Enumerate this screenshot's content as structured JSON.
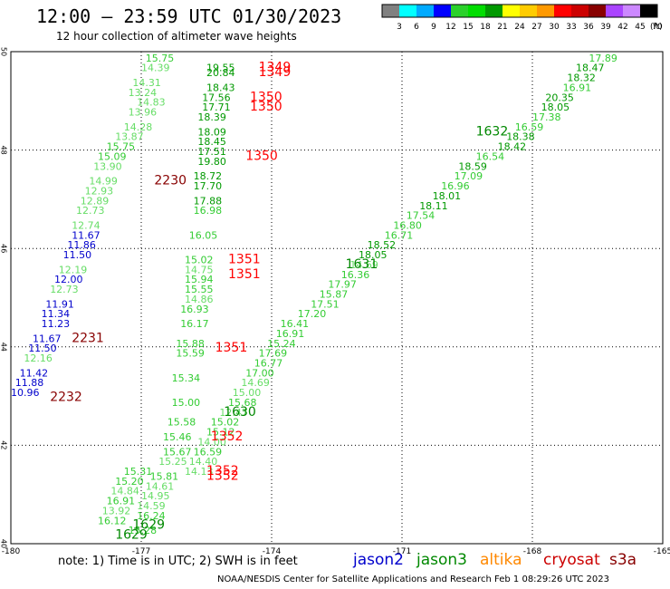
{
  "header": {
    "title": "12:00 – 23:59 UTC 01/30/2023",
    "subtitle": "12 hour collection of altimeter wave heights",
    "unit_label": "(ft)"
  },
  "colorbar": {
    "ticks": [
      "3",
      "6",
      "9",
      "12",
      "15",
      "18",
      "21",
      "24",
      "27",
      "30",
      "33",
      "36",
      "39",
      "42",
      "45",
      "70"
    ],
    "colors": [
      "#808080",
      "#00ffff",
      "#00aaff",
      "#0000ff",
      "#2bd12b",
      "#00dd00",
      "#009900",
      "#ffff00",
      "#ffcc00",
      "#ff9900",
      "#ff0000",
      "#cc0000",
      "#880000",
      "#aa44ff",
      "#cc88ff",
      "#000000"
    ]
  },
  "footer": {
    "note": "note: 1) Time is in UTC; 2) SWH is in feet",
    "satellites": [
      {
        "name": "jason2",
        "color": "#0000cc"
      },
      {
        "name": "jason3",
        "color": "#008800"
      },
      {
        "name": "altika",
        "color": "#ff8800"
      },
      {
        "name": "cryosat",
        "color": "#cc0000"
      },
      {
        "name": "s3a",
        "color": "#880000"
      }
    ],
    "credit": "NOAA/NESDIS Center for Satellite Applications and Research    Feb  1 08:29:26 UTC 2023"
  },
  "chart_data": {
    "type": "scatter",
    "title": "12:00 – 23:59 UTC 01/30/2023",
    "subtitle": "12 hour collection of altimeter wave heights",
    "xlim": [
      -180,
      -165
    ],
    "ylim": [
      40,
      50
    ],
    "x_tick_labels": [
      "-180",
      "-177",
      "-174",
      "-171",
      "-168",
      "-165"
    ],
    "y_tick_labels": [
      "40",
      "42",
      "44",
      "46",
      "48",
      "50"
    ],
    "grid": true,
    "units": "ft",
    "swh_labels": [
      {
        "lon": -176.9,
        "lat": 49.8,
        "swh": "15.75",
        "color": "#33cc33"
      },
      {
        "lon": -177.0,
        "lat": 49.6,
        "swh": "14.39",
        "color": "#66dd66"
      },
      {
        "lon": -177.2,
        "lat": 49.3,
        "swh": "14.31",
        "color": "#66dd66"
      },
      {
        "lon": -177.3,
        "lat": 49.1,
        "swh": "13.24",
        "color": "#66dd66"
      },
      {
        "lon": -177.1,
        "lat": 48.9,
        "swh": "14.83",
        "color": "#66dd66"
      },
      {
        "lon": -177.3,
        "lat": 48.7,
        "swh": "13.96",
        "color": "#66dd66"
      },
      {
        "lon": -177.4,
        "lat": 48.4,
        "swh": "14.28",
        "color": "#66dd66"
      },
      {
        "lon": -177.6,
        "lat": 48.2,
        "swh": "13.87",
        "color": "#66dd66"
      },
      {
        "lon": -177.8,
        "lat": 48.0,
        "swh": "15.75",
        "color": "#33cc33"
      },
      {
        "lon": -178.0,
        "lat": 47.8,
        "swh": "15.09",
        "color": "#33cc33"
      },
      {
        "lon": -178.1,
        "lat": 47.6,
        "swh": "13.90",
        "color": "#66dd66"
      },
      {
        "lon": -178.2,
        "lat": 47.3,
        "swh": "14.99",
        "color": "#66dd66"
      },
      {
        "lon": -178.3,
        "lat": 47.1,
        "swh": "12.93",
        "color": "#66dd66"
      },
      {
        "lon": -178.4,
        "lat": 46.9,
        "swh": "12.89",
        "color": "#66dd66"
      },
      {
        "lon": -178.5,
        "lat": 46.7,
        "swh": "12.73",
        "color": "#66dd66"
      },
      {
        "lon": -178.6,
        "lat": 46.4,
        "swh": "12.74",
        "color": "#66dd66"
      },
      {
        "lon": -178.6,
        "lat": 46.2,
        "swh": "11.67",
        "color": "#0000cc"
      },
      {
        "lon": -178.7,
        "lat": 46.0,
        "swh": "11.86",
        "color": "#0000cc"
      },
      {
        "lon": -178.8,
        "lat": 45.8,
        "swh": "11.50",
        "color": "#0000cc"
      },
      {
        "lon": -178.9,
        "lat": 45.5,
        "swh": "12.19",
        "color": "#66dd66"
      },
      {
        "lon": -179.0,
        "lat": 45.3,
        "swh": "12.00",
        "color": "#0000cc"
      },
      {
        "lon": -179.1,
        "lat": 45.1,
        "swh": "12.73",
        "color": "#66dd66"
      },
      {
        "lon": -179.2,
        "lat": 44.8,
        "swh": "11.91",
        "color": "#0000cc"
      },
      {
        "lon": -179.3,
        "lat": 44.6,
        "swh": "11.34",
        "color": "#0000cc"
      },
      {
        "lon": -179.3,
        "lat": 44.4,
        "swh": "11.23",
        "color": "#0000cc"
      },
      {
        "lon": -179.5,
        "lat": 44.1,
        "swh": "11.67",
        "color": "#0000cc"
      },
      {
        "lon": -179.6,
        "lat": 43.9,
        "swh": "11.50",
        "color": "#0000cc"
      },
      {
        "lon": -179.7,
        "lat": 43.7,
        "swh": "12.16",
        "color": "#66dd66"
      },
      {
        "lon": -179.8,
        "lat": 43.4,
        "swh": "11.42",
        "color": "#0000cc"
      },
      {
        "lon": -179.9,
        "lat": 43.2,
        "swh": "11.88",
        "color": "#0000cc"
      },
      {
        "lon": -180.0,
        "lat": 43.0,
        "swh": "10.96",
        "color": "#0000cc"
      },
      {
        "lon": -175.5,
        "lat": 49.6,
        "swh": "19.55",
        "color": "#009900"
      },
      {
        "lon": -175.5,
        "lat": 49.5,
        "swh": "20.84",
        "color": "#009900"
      },
      {
        "lon": -175.5,
        "lat": 49.2,
        "swh": "18.43",
        "color": "#009900"
      },
      {
        "lon": -175.6,
        "lat": 49.0,
        "swh": "17.56",
        "color": "#009900"
      },
      {
        "lon": -175.6,
        "lat": 48.8,
        "swh": "17.71",
        "color": "#009900"
      },
      {
        "lon": -175.7,
        "lat": 48.6,
        "swh": "18.39",
        "color": "#009900"
      },
      {
        "lon": -175.7,
        "lat": 48.3,
        "swh": "18.09",
        "color": "#009900"
      },
      {
        "lon": -175.7,
        "lat": 48.1,
        "swh": "18.45",
        "color": "#009900"
      },
      {
        "lon": -175.7,
        "lat": 47.9,
        "swh": "17.51",
        "color": "#009900"
      },
      {
        "lon": -175.7,
        "lat": 47.7,
        "swh": "19.80",
        "color": "#009900"
      },
      {
        "lon": -175.8,
        "lat": 47.4,
        "swh": "18.72",
        "color": "#009900"
      },
      {
        "lon": -175.8,
        "lat": 47.2,
        "swh": "17.70",
        "color": "#009900"
      },
      {
        "lon": -175.8,
        "lat": 46.9,
        "swh": "17.88",
        "color": "#009900"
      },
      {
        "lon": -175.8,
        "lat": 46.7,
        "swh": "16.98",
        "color": "#33cc33"
      },
      {
        "lon": -175.9,
        "lat": 46.2,
        "swh": "16.05",
        "color": "#33cc33"
      },
      {
        "lon": -176.0,
        "lat": 45.7,
        "swh": "15.02",
        "color": "#33cc33"
      },
      {
        "lon": -176.0,
        "lat": 45.5,
        "swh": "14.75",
        "color": "#66dd66"
      },
      {
        "lon": -176.0,
        "lat": 45.3,
        "swh": "15.94",
        "color": "#33cc33"
      },
      {
        "lon": -176.0,
        "lat": 45.1,
        "swh": "15.55",
        "color": "#33cc33"
      },
      {
        "lon": -176.0,
        "lat": 44.9,
        "swh": "14.86",
        "color": "#66dd66"
      },
      {
        "lon": -176.1,
        "lat": 44.7,
        "swh": "16.93",
        "color": "#33cc33"
      },
      {
        "lon": -176.1,
        "lat": 44.4,
        "swh": "16.17",
        "color": "#33cc33"
      },
      {
        "lon": -176.2,
        "lat": 44.0,
        "swh": "15.88",
        "color": "#33cc33"
      },
      {
        "lon": -176.2,
        "lat": 43.8,
        "swh": "15.59",
        "color": "#33cc33"
      },
      {
        "lon": -176.3,
        "lat": 43.3,
        "swh": "15.34",
        "color": "#33cc33"
      },
      {
        "lon": -176.3,
        "lat": 42.8,
        "swh": "15.00",
        "color": "#33cc33"
      },
      {
        "lon": -176.4,
        "lat": 42.4,
        "swh": "15.58",
        "color": "#33cc33"
      },
      {
        "lon": -176.5,
        "lat": 42.1,
        "swh": "15.46",
        "color": "#33cc33"
      },
      {
        "lon": -176.5,
        "lat": 41.8,
        "swh": "15.67",
        "color": "#33cc33"
      },
      {
        "lon": -176.6,
        "lat": 41.6,
        "swh": "15.25",
        "color": "#66dd66"
      },
      {
        "lon": -176.8,
        "lat": 41.3,
        "swh": "15.81",
        "color": "#33cc33"
      },
      {
        "lon": -176.9,
        "lat": 41.1,
        "swh": "14.61",
        "color": "#66dd66"
      },
      {
        "lon": -177.0,
        "lat": 40.9,
        "swh": "14.95",
        "color": "#66dd66"
      },
      {
        "lon": -177.1,
        "lat": 40.7,
        "swh": "14.59",
        "color": "#66dd66"
      },
      {
        "lon": -177.1,
        "lat": 40.5,
        "swh": "16.24",
        "color": "#33cc33"
      },
      {
        "lon": -177.3,
        "lat": 40.2,
        "swh": "15.28",
        "color": "#33cc33"
      },
      {
        "lon": -177.4,
        "lat": 41.4,
        "swh": "15.31",
        "color": "#33cc33"
      },
      {
        "lon": -177.6,
        "lat": 41.2,
        "swh": "15.20",
        "color": "#33cc33"
      },
      {
        "lon": -177.7,
        "lat": 41.0,
        "swh": "14.84",
        "color": "#66dd66"
      },
      {
        "lon": -177.8,
        "lat": 40.8,
        "swh": "16.91",
        "color": "#33cc33"
      },
      {
        "lon": -177.9,
        "lat": 40.6,
        "swh": "13.92",
        "color": "#66dd66"
      },
      {
        "lon": -178.0,
        "lat": 40.4,
        "swh": "16.12",
        "color": "#33cc33"
      },
      {
        "lon": -166.7,
        "lat": 49.8,
        "swh": "17.89",
        "color": "#33cc33"
      },
      {
        "lon": -167.0,
        "lat": 49.6,
        "swh": "18.47",
        "color": "#009900"
      },
      {
        "lon": -167.2,
        "lat": 49.4,
        "swh": "18.32",
        "color": "#009900"
      },
      {
        "lon": -167.3,
        "lat": 49.2,
        "swh": "16.91",
        "color": "#33cc33"
      },
      {
        "lon": -167.7,
        "lat": 49.0,
        "swh": "20.35",
        "color": "#009900"
      },
      {
        "lon": -167.8,
        "lat": 48.8,
        "swh": "18.05",
        "color": "#009900"
      },
      {
        "lon": -168.0,
        "lat": 48.6,
        "swh": "17.38",
        "color": "#33cc33"
      },
      {
        "lon": -168.4,
        "lat": 48.4,
        "swh": "16.59",
        "color": "#33cc33"
      },
      {
        "lon": -168.6,
        "lat": 48.2,
        "swh": "18.38",
        "color": "#009900"
      },
      {
        "lon": -168.8,
        "lat": 48.0,
        "swh": "18.42",
        "color": "#009900"
      },
      {
        "lon": -169.3,
        "lat": 47.8,
        "swh": "16.54",
        "color": "#33cc33"
      },
      {
        "lon": -169.7,
        "lat": 47.6,
        "swh": "18.59",
        "color": "#009900"
      },
      {
        "lon": -169.8,
        "lat": 47.4,
        "swh": "17.09",
        "color": "#33cc33"
      },
      {
        "lon": -170.1,
        "lat": 47.2,
        "swh": "16.96",
        "color": "#33cc33"
      },
      {
        "lon": -170.3,
        "lat": 47.0,
        "swh": "18.01",
        "color": "#009900"
      },
      {
        "lon": -170.6,
        "lat": 46.8,
        "swh": "18.11",
        "color": "#009900"
      },
      {
        "lon": -170.9,
        "lat": 46.6,
        "swh": "17.54",
        "color": "#33cc33"
      },
      {
        "lon": -171.2,
        "lat": 46.4,
        "swh": "16.80",
        "color": "#33cc33"
      },
      {
        "lon": -171.4,
        "lat": 46.2,
        "swh": "16.71",
        "color": "#33cc33"
      },
      {
        "lon": -171.8,
        "lat": 46.0,
        "swh": "18.52",
        "color": "#009900"
      },
      {
        "lon": -172.0,
        "lat": 45.8,
        "swh": "18.05",
        "color": "#009900"
      },
      {
        "lon": -172.2,
        "lat": 45.6,
        "swh": "14.69",
        "color": "#66dd66"
      },
      {
        "lon": -172.4,
        "lat": 45.4,
        "swh": "16.36",
        "color": "#33cc33"
      },
      {
        "lon": -172.7,
        "lat": 45.2,
        "swh": "17.97",
        "color": "#33cc33"
      },
      {
        "lon": -172.9,
        "lat": 45.0,
        "swh": "15.87",
        "color": "#33cc33"
      },
      {
        "lon": -173.1,
        "lat": 44.8,
        "swh": "17.51",
        "color": "#33cc33"
      },
      {
        "lon": -173.4,
        "lat": 44.6,
        "swh": "17.20",
        "color": "#33cc33"
      },
      {
        "lon": -173.8,
        "lat": 44.4,
        "swh": "16.41",
        "color": "#33cc33"
      },
      {
        "lon": -173.9,
        "lat": 44.2,
        "swh": "16.91",
        "color": "#33cc33"
      },
      {
        "lon": -174.1,
        "lat": 44.0,
        "swh": "15.24",
        "color": "#33cc33"
      },
      {
        "lon": -174.3,
        "lat": 43.8,
        "swh": "17.69",
        "color": "#33cc33"
      },
      {
        "lon": -174.4,
        "lat": 43.6,
        "swh": "16.77",
        "color": "#33cc33"
      },
      {
        "lon": -174.6,
        "lat": 43.4,
        "swh": "17.00",
        "color": "#33cc33"
      },
      {
        "lon": -174.7,
        "lat": 43.2,
        "swh": "14.69",
        "color": "#66dd66"
      },
      {
        "lon": -174.9,
        "lat": 43.0,
        "swh": "15.00",
        "color": "#66dd66"
      },
      {
        "lon": -175.0,
        "lat": 42.8,
        "swh": "15.68",
        "color": "#33cc33"
      },
      {
        "lon": -175.2,
        "lat": 42.6,
        "swh": "12.47",
        "color": "#66dd66"
      },
      {
        "lon": -175.4,
        "lat": 42.4,
        "swh": "15.02",
        "color": "#33cc33"
      },
      {
        "lon": -175.5,
        "lat": 42.2,
        "swh": "15.12",
        "color": "#33cc33"
      },
      {
        "lon": -175.7,
        "lat": 42.0,
        "swh": "14.00",
        "color": "#66dd66"
      },
      {
        "lon": -175.8,
        "lat": 41.8,
        "swh": "16.59",
        "color": "#33cc33"
      },
      {
        "lon": -175.9,
        "lat": 41.6,
        "swh": "14.40",
        "color": "#66dd66"
      },
      {
        "lon": -176.0,
        "lat": 41.4,
        "swh": "14.13",
        "color": "#66dd66"
      }
    ],
    "time_labels": [
      {
        "lon": -174.3,
        "lat": 49.6,
        "time": "1349",
        "satellite": "cryosat",
        "color": "#ff0000"
      },
      {
        "lon": -174.3,
        "lat": 49.5,
        "time": "1349",
        "satellite": "cryosat",
        "color": "#ff0000"
      },
      {
        "lon": -174.5,
        "lat": 49.0,
        "time": "1350",
        "satellite": "cryosat",
        "color": "#ff0000"
      },
      {
        "lon": -174.5,
        "lat": 48.8,
        "time": "1350",
        "satellite": "cryosat",
        "color": "#ff0000"
      },
      {
        "lon": -174.6,
        "lat": 47.8,
        "time": "1350",
        "satellite": "cryosat",
        "color": "#ff0000"
      },
      {
        "lon": -176.7,
        "lat": 47.3,
        "time": "2230",
        "satellite": "s3a",
        "color": "#880000"
      },
      {
        "lon": -175.0,
        "lat": 45.7,
        "time": "1351",
        "satellite": "cryosat",
        "color": "#ff0000"
      },
      {
        "lon": -175.0,
        "lat": 45.4,
        "time": "1351",
        "satellite": "cryosat",
        "color": "#ff0000"
      },
      {
        "lon": -172.3,
        "lat": 45.6,
        "time": "1631",
        "satellite": "jason3",
        "color": "#008800"
      },
      {
        "lon": -178.6,
        "lat": 44.1,
        "time": "2231",
        "satellite": "s3a",
        "color": "#880000"
      },
      {
        "lon": -175.3,
        "lat": 43.9,
        "time": "1351",
        "satellite": "cryosat",
        "color": "#ff0000"
      },
      {
        "lon": -179.1,
        "lat": 42.9,
        "time": "2232",
        "satellite": "s3a",
        "color": "#880000"
      },
      {
        "lon": -175.1,
        "lat": 42.6,
        "time": "1630",
        "satellite": "jason3",
        "color": "#008800"
      },
      {
        "lon": -175.4,
        "lat": 42.1,
        "time": "1352",
        "satellite": "cryosat",
        "color": "#ff0000"
      },
      {
        "lon": -175.5,
        "lat": 41.4,
        "time": "1352",
        "satellite": "cryosat",
        "color": "#ff0000"
      },
      {
        "lon": -175.5,
        "lat": 41.3,
        "time": "1352",
        "satellite": "cryosat",
        "color": "#ff0000"
      },
      {
        "lon": -169.3,
        "lat": 48.3,
        "time": "1632",
        "satellite": "jason3",
        "color": "#008800"
      },
      {
        "lon": -177.2,
        "lat": 40.3,
        "time": "1629",
        "satellite": "jason3",
        "color": "#008800"
      },
      {
        "lon": -177.6,
        "lat": 40.1,
        "time": "1629",
        "satellite": "jason3",
        "color": "#008800"
      }
    ]
  }
}
